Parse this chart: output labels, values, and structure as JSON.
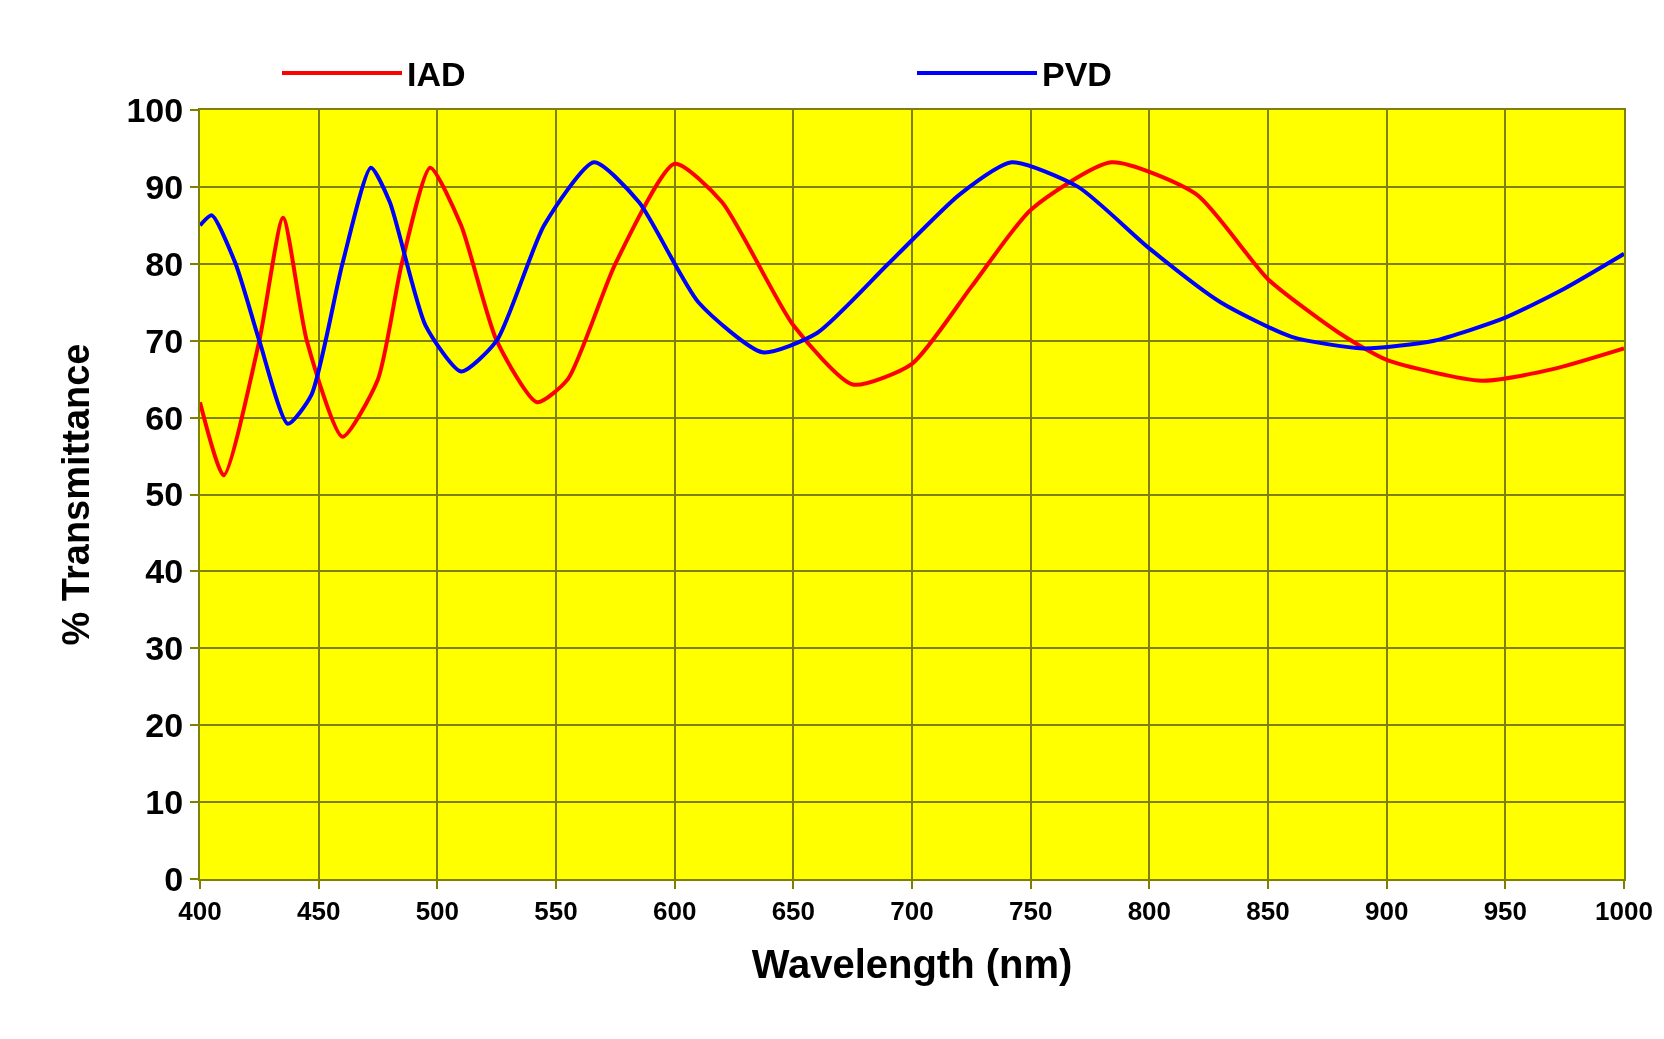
{
  "chart_data": {
    "type": "line",
    "xlabel": "Wavelength (nm)",
    "ylabel": "% Transmittance",
    "xlim": [
      400,
      1000
    ],
    "ylim": [
      0,
      100
    ],
    "xticks": [
      400,
      450,
      500,
      550,
      600,
      650,
      700,
      750,
      800,
      850,
      900,
      950,
      1000
    ],
    "yticks": [
      0,
      10,
      20,
      30,
      40,
      50,
      60,
      70,
      80,
      90,
      100
    ],
    "grid": true,
    "legend": "top",
    "marker": "none",
    "line_style": "solid",
    "series": [
      {
        "name": "IAD",
        "color": "#ff0000",
        "x": [
          400,
          410,
          425,
          435,
          445,
          460,
          475,
          485,
          497,
          510,
          525,
          542,
          555,
          575,
          600,
          620,
          650,
          675,
          700,
          725,
          750,
          784,
          820,
          850,
          880,
          900,
          940,
          970,
          1000
        ],
        "values": [
          62,
          52.5,
          70,
          86,
          70,
          57.5,
          65,
          80,
          92.5,
          85,
          70,
          62,
          65,
          80,
          93,
          88,
          72,
          64.3,
          67,
          77,
          87,
          93.2,
          89,
          78,
          71,
          67.5,
          64.8,
          66.3,
          69
        ]
      },
      {
        "name": "PVD",
        "color": "#0000ff",
        "x": [
          400,
          405,
          415,
          425,
          437,
          447,
          460,
          472,
          480,
          495,
          510,
          525,
          545,
          566,
          585,
          610,
          637,
          660,
          690,
          720,
          742,
          770,
          800,
          830,
          860,
          890,
          920,
          950,
          975,
          1000
        ],
        "values": [
          85,
          86.3,
          80,
          70,
          59.2,
          63,
          80,
          92.5,
          88,
          72,
          66,
          70,
          85,
          93.2,
          88,
          75,
          68.5,
          71,
          80,
          89,
          93.2,
          90,
          82,
          75,
          70.5,
          69,
          70,
          73,
          76.8,
          81.3
        ]
      }
    ]
  }
}
